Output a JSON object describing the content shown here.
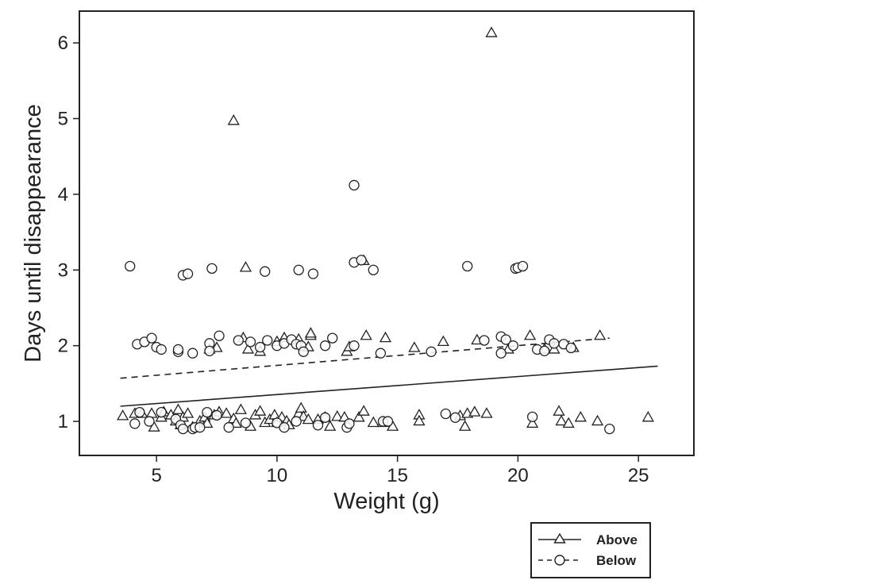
{
  "chart_data": {
    "type": "scatter",
    "xlabel": "Weight (g)",
    "ylabel": "Days until disappearance",
    "xlim": [
      1.8,
      27.3
    ],
    "ylim": [
      0.55,
      6.42
    ],
    "xticks": [
      5,
      10,
      15,
      20,
      25
    ],
    "yticks": [
      1,
      2,
      3,
      4,
      5,
      6
    ],
    "legend_position": "bottom-right, outside plot",
    "series": [
      {
        "name": "Above",
        "marker": "triangle",
        "line_style": "solid",
        "fit_line": {
          "x": [
            3.5,
            25.8
          ],
          "y": [
            1.2,
            1.73
          ]
        },
        "points": [
          [
            3.6,
            1.07
          ],
          [
            4.1,
            1.1
          ],
          [
            4.4,
            1.1
          ],
          [
            4.8,
            1.1
          ],
          [
            4.9,
            0.92
          ],
          [
            5.2,
            1.05
          ],
          [
            5.3,
            1.12
          ],
          [
            5.6,
            1.08
          ],
          [
            5.8,
            1.0
          ],
          [
            5.9,
            1.15
          ],
          [
            6.0,
            0.95
          ],
          [
            6.1,
            1.05
          ],
          [
            6.3,
            1.1
          ],
          [
            6.5,
            0.92
          ],
          [
            6.8,
            1.0
          ],
          [
            7.0,
            1.05
          ],
          [
            7.1,
            0.97
          ],
          [
            7.4,
            1.08
          ],
          [
            7.6,
            1.12
          ],
          [
            7.9,
            1.1
          ],
          [
            8.2,
            1.03
          ],
          [
            8.3,
            0.97
          ],
          [
            8.5,
            1.15
          ],
          [
            8.9,
            0.93
          ],
          [
            9.1,
            1.08
          ],
          [
            9.3,
            1.13
          ],
          [
            9.5,
            0.98
          ],
          [
            9.7,
            1.02
          ],
          [
            9.9,
            1.08
          ],
          [
            10.0,
            0.98
          ],
          [
            10.2,
            1.05
          ],
          [
            10.4,
            1.0
          ],
          [
            10.5,
            0.95
          ],
          [
            10.9,
            1.1
          ],
          [
            11.0,
            1.17
          ],
          [
            11.1,
            1.06
          ],
          [
            11.3,
            1.02
          ],
          [
            11.7,
            1.02
          ],
          [
            12.0,
            1.05
          ],
          [
            12.2,
            0.93
          ],
          [
            12.5,
            1.06
          ],
          [
            12.8,
            1.05
          ],
          [
            13.4,
            1.05
          ],
          [
            13.6,
            1.13
          ],
          [
            14.0,
            0.98
          ],
          [
            14.4,
            0.98
          ],
          [
            14.8,
            0.93
          ],
          [
            15.9,
            1.08
          ],
          [
            15.9,
            1.0
          ],
          [
            17.6,
            1.07
          ],
          [
            17.8,
            0.93
          ],
          [
            17.9,
            1.1
          ],
          [
            18.2,
            1.12
          ],
          [
            18.7,
            1.1
          ],
          [
            20.6,
            0.97
          ],
          [
            21.7,
            1.13
          ],
          [
            21.8,
            1.0
          ],
          [
            22.1,
            0.97
          ],
          [
            22.6,
            1.05
          ],
          [
            23.3,
            1.0
          ],
          [
            25.4,
            1.05
          ],
          [
            7.2,
            1.95
          ],
          [
            7.5,
            1.97
          ],
          [
            8.6,
            2.1
          ],
          [
            8.8,
            1.95
          ],
          [
            9.3,
            1.92
          ],
          [
            10.0,
            2.05
          ],
          [
            10.3,
            2.1
          ],
          [
            10.9,
            2.08
          ],
          [
            11.3,
            1.98
          ],
          [
            11.4,
            2.13
          ],
          [
            11.4,
            2.16
          ],
          [
            12.9,
            1.92
          ],
          [
            13.0,
            1.98
          ],
          [
            13.7,
            2.13
          ],
          [
            14.5,
            2.1
          ],
          [
            15.7,
            1.97
          ],
          [
            16.9,
            2.05
          ],
          [
            18.3,
            2.07
          ],
          [
            19.6,
            1.95
          ],
          [
            20.5,
            2.13
          ],
          [
            21.1,
            1.95
          ],
          [
            21.5,
            1.95
          ],
          [
            22.3,
            1.97
          ],
          [
            23.4,
            2.13
          ],
          [
            8.7,
            3.03
          ],
          [
            13.6,
            3.12
          ],
          [
            8.2,
            4.97
          ],
          [
            18.9,
            6.13
          ]
        ]
      },
      {
        "name": "Below",
        "marker": "circle",
        "line_style": "dashed",
        "fit_line": {
          "x": [
            3.5,
            23.8
          ],
          "y": [
            1.57,
            2.1
          ]
        },
        "points": [
          [
            4.1,
            0.97
          ],
          [
            4.3,
            1.12
          ],
          [
            4.7,
            1.0
          ],
          [
            5.2,
            1.12
          ],
          [
            5.8,
            1.03
          ],
          [
            6.0,
            0.95
          ],
          [
            6.1,
            0.9
          ],
          [
            6.5,
            0.9
          ],
          [
            6.6,
            0.92
          ],
          [
            6.8,
            0.92
          ],
          [
            7.1,
            1.12
          ],
          [
            7.5,
            1.08
          ],
          [
            8.0,
            0.92
          ],
          [
            8.7,
            0.98
          ],
          [
            10.0,
            0.98
          ],
          [
            10.3,
            0.92
          ],
          [
            10.8,
            1.0
          ],
          [
            11.7,
            0.95
          ],
          [
            12.0,
            1.05
          ],
          [
            12.9,
            0.92
          ],
          [
            13.0,
            0.97
          ],
          [
            14.4,
            1.0
          ],
          [
            14.6,
            1.0
          ],
          [
            17.0,
            1.1
          ],
          [
            17.4,
            1.05
          ],
          [
            20.6,
            1.06
          ],
          [
            23.8,
            0.9
          ],
          [
            4.2,
            2.02
          ],
          [
            4.5,
            2.05
          ],
          [
            4.8,
            2.1
          ],
          [
            5.0,
            1.98
          ],
          [
            5.2,
            1.95
          ],
          [
            5.9,
            1.92
          ],
          [
            5.9,
            1.95
          ],
          [
            6.5,
            1.9
          ],
          [
            7.2,
            2.03
          ],
          [
            7.2,
            1.93
          ],
          [
            7.6,
            2.13
          ],
          [
            8.4,
            2.07
          ],
          [
            8.9,
            2.05
          ],
          [
            9.3,
            1.98
          ],
          [
            9.6,
            2.07
          ],
          [
            10.0,
            2.0
          ],
          [
            10.3,
            2.03
          ],
          [
            10.6,
            2.08
          ],
          [
            10.8,
            2.02
          ],
          [
            11.0,
            2.0
          ],
          [
            11.1,
            1.92
          ],
          [
            12.0,
            2.0
          ],
          [
            12.3,
            2.1
          ],
          [
            13.2,
            2.0
          ],
          [
            14.3,
            1.9
          ],
          [
            16.4,
            1.92
          ],
          [
            18.6,
            2.07
          ],
          [
            19.3,
            2.12
          ],
          [
            19.3,
            1.9
          ],
          [
            19.5,
            2.08
          ],
          [
            19.8,
            2.0
          ],
          [
            20.8,
            1.95
          ],
          [
            21.1,
            1.93
          ],
          [
            21.3,
            2.08
          ],
          [
            21.5,
            2.03
          ],
          [
            21.9,
            2.02
          ],
          [
            22.2,
            1.97
          ],
          [
            3.9,
            3.05
          ],
          [
            6.1,
            2.93
          ],
          [
            6.3,
            2.95
          ],
          [
            7.3,
            3.02
          ],
          [
            9.5,
            2.98
          ],
          [
            10.9,
            3.0
          ],
          [
            11.5,
            2.95
          ],
          [
            13.2,
            3.1
          ],
          [
            13.5,
            3.13
          ],
          [
            14.0,
            3.0
          ],
          [
            17.9,
            3.05
          ],
          [
            19.9,
            3.02
          ],
          [
            20.0,
            3.03
          ],
          [
            20.2,
            3.05
          ],
          [
            13.2,
            4.12
          ]
        ]
      }
    ]
  }
}
